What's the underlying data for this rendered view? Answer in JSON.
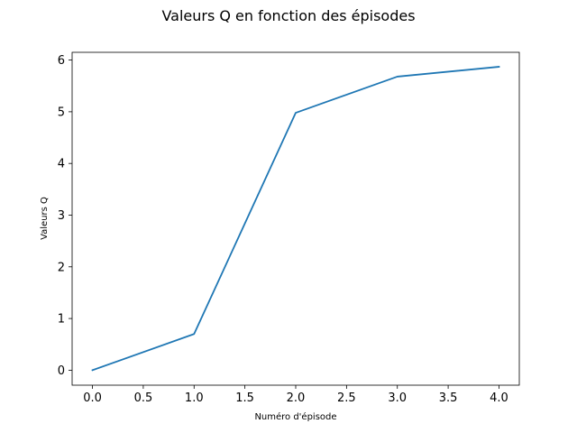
{
  "chart_data": {
    "type": "line",
    "title": "Valeurs Q en fonction des épisodes",
    "xlabel": "Numéro d'épisode",
    "ylabel": "Valeurs Q",
    "xlim": [
      -0.2,
      4.2
    ],
    "ylim": [
      -0.29,
      6.15
    ],
    "xticks": [
      0.0,
      0.5,
      1.0,
      1.5,
      2.0,
      2.5,
      3.0,
      3.5,
      4.0
    ],
    "xtick_labels": [
      "0.0",
      "0.5",
      "1.0",
      "1.5",
      "2.0",
      "2.5",
      "3.0",
      "3.5",
      "4.0"
    ],
    "yticks": [
      0,
      1,
      2,
      3,
      4,
      5,
      6
    ],
    "ytick_labels": [
      "0",
      "1",
      "2",
      "3",
      "4",
      "5",
      "6"
    ],
    "grid": false,
    "series": [
      {
        "x": [
          0,
          1,
          2,
          3,
          4
        ],
        "values": [
          0.0,
          0.7,
          4.98,
          5.68,
          5.87
        ],
        "color": "#1f77b4"
      }
    ]
  }
}
